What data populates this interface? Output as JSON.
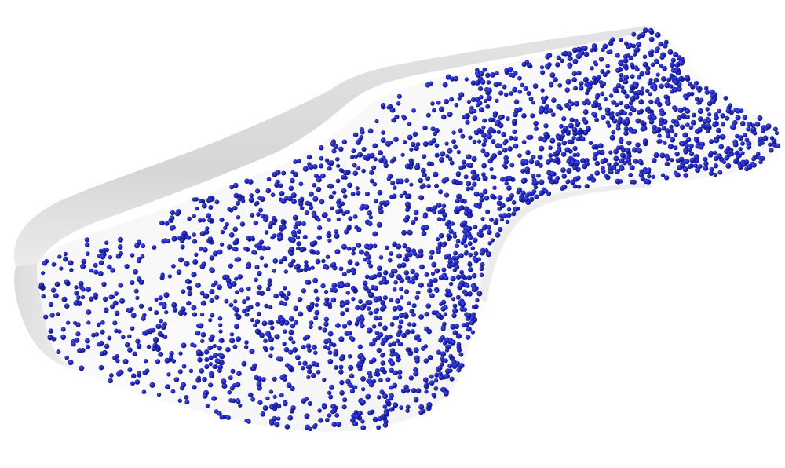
{
  "scene": {
    "background": "#ffffff",
    "surface_color": "#f6f6f6",
    "surface_shadow_color": "#d9d9d9",
    "surface_edge_color": "#c8c8c8",
    "point_color": "#1a1fb0",
    "point_highlight_color": "#3a40e0",
    "point_count": 2600,
    "random_seed": 17
  }
}
